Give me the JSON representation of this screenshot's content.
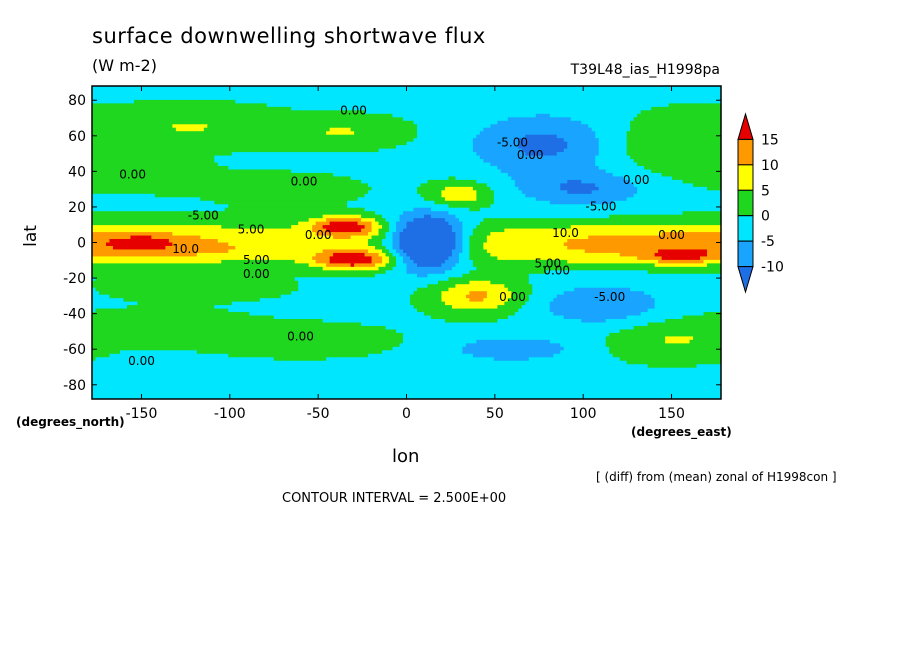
{
  "chart_data": {
    "type": "heatmap",
    "title": "surface downwelling shortwave flux",
    "units": "(W m-2)",
    "run_id": "T39L48_ias_H1998pa",
    "xlabel": "lon",
    "ylabel": "lat",
    "x_units": "(degrees_east)",
    "y_units": "(degrees_north)",
    "xlim": [
      -178,
      178
    ],
    "ylim": [
      -88,
      88
    ],
    "x_ticks": [
      -150,
      -100,
      -50,
      0,
      50,
      100,
      150
    ],
    "x_tick_labels": [
      "-150",
      "-100",
      "-50",
      "0",
      "50",
      "100",
      "150"
    ],
    "y_ticks": [
      80,
      60,
      40,
      20,
      0,
      -20,
      -40,
      -60,
      -80
    ],
    "y_tick_labels": [
      "80",
      "60",
      "40",
      "20",
      "0",
      "-20",
      "-40",
      "-60",
      "-80"
    ],
    "colorbar": {
      "levels": [
        -10,
        -5,
        0,
        5,
        10,
        15
      ],
      "labels": [
        "15",
        "10",
        "5",
        "0",
        "-5",
        "-10"
      ],
      "colors": [
        "#1e6fe6",
        "#19a5ff",
        "#00e6ff",
        "#1ed71e",
        "#ffff00",
        "#ff9900",
        "#e60000"
      ]
    },
    "contour_labels": [
      {
        "text": "0.00",
        "lon": -30,
        "lat": 72
      },
      {
        "text": "0.00",
        "lon": -155,
        "lat": 36
      },
      {
        "text": "0.00",
        "lon": -58,
        "lat": 32
      },
      {
        "text": "-5.00",
        "lon": 60,
        "lat": 54
      },
      {
        "text": "0.00",
        "lon": 70,
        "lat": 47
      },
      {
        "text": "0.00",
        "lon": 130,
        "lat": 33
      },
      {
        "text": "-5.00",
        "lon": -115,
        "lat": 13
      },
      {
        "text": "-5.00",
        "lon": 110,
        "lat": 18
      },
      {
        "text": "5.00",
        "lon": -88,
        "lat": 5
      },
      {
        "text": "0.00",
        "lon": -50,
        "lat": 2
      },
      {
        "text": "10.0",
        "lon": 90,
        "lat": 3
      },
      {
        "text": "0.00",
        "lon": 150,
        "lat": 2
      },
      {
        "text": "10.0",
        "lon": -125,
        "lat": -6
      },
      {
        "text": "5.00",
        "lon": -85,
        "lat": -12
      },
      {
        "text": "0.00",
        "lon": -85,
        "lat": -20
      },
      {
        "text": "5.00",
        "lon": 80,
        "lat": -14
      },
      {
        "text": "0.00",
        "lon": 85,
        "lat": -18
      },
      {
        "text": "0.00",
        "lon": 60,
        "lat": -33
      },
      {
        "text": "-5.00",
        "lon": 115,
        "lat": -33
      },
      {
        "text": "0.00",
        "lon": -60,
        "lat": -55
      },
      {
        "text": "0.00",
        "lon": -150,
        "lat": -69
      }
    ],
    "contour_interval_text": "CONTOUR INTERVAL = 2.500E+00",
    "note": "[ (diff) from (mean) zonal of H1998con ]"
  }
}
